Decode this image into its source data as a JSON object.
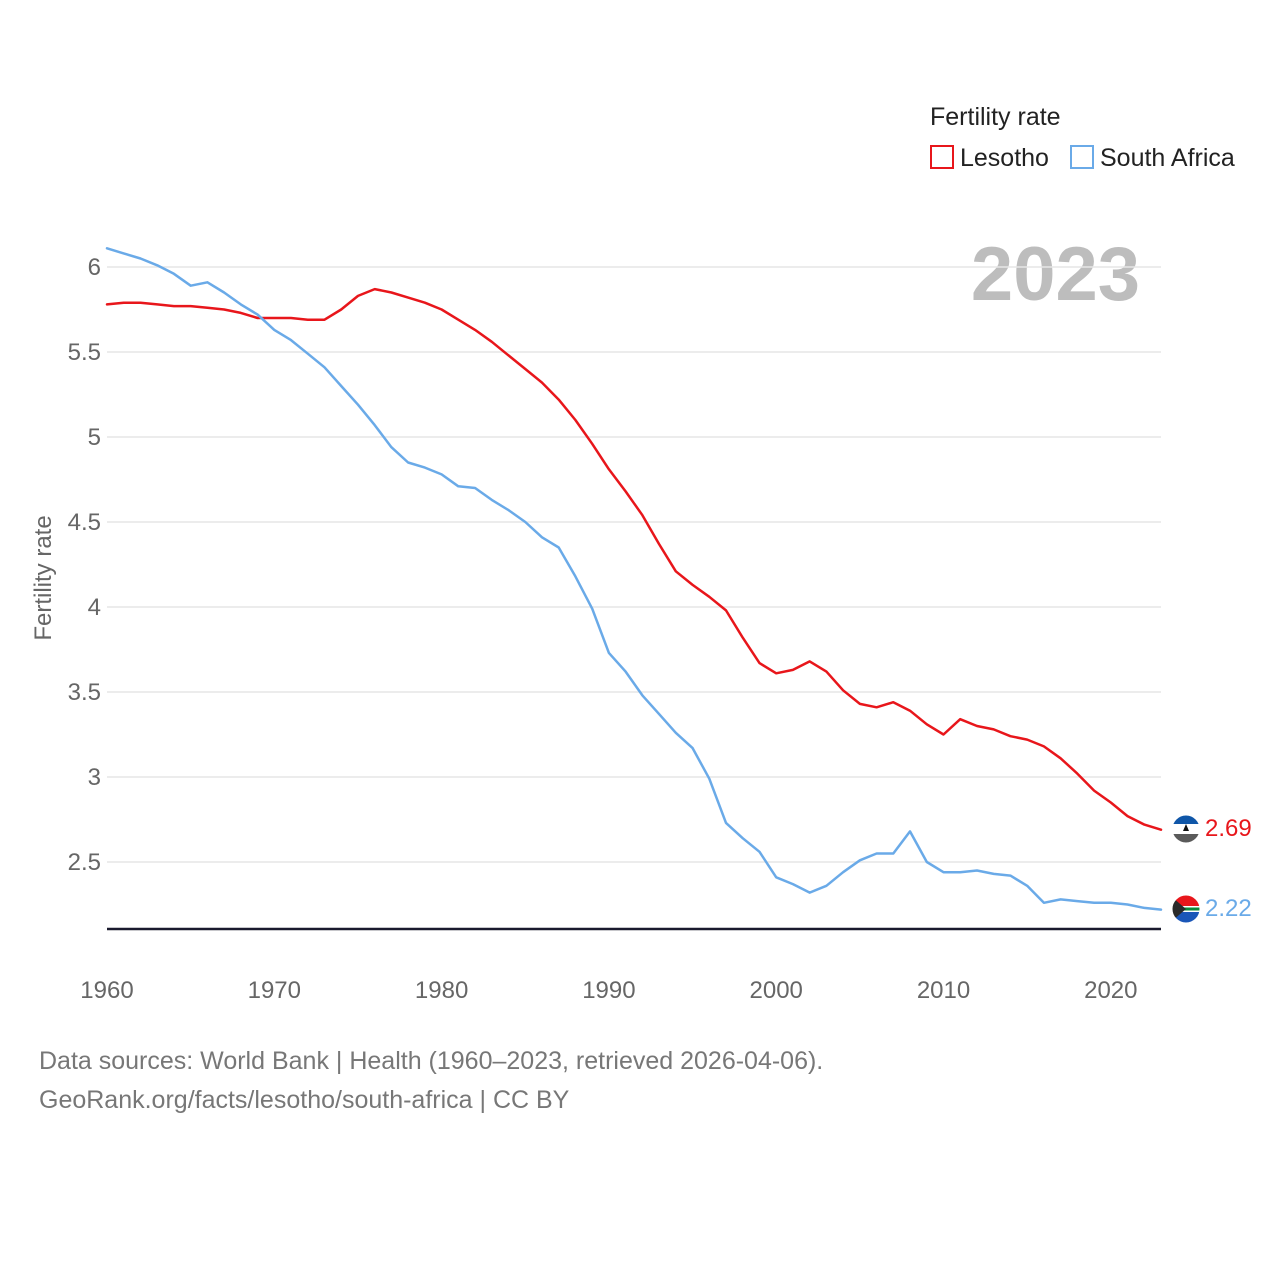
{
  "chart_data": {
    "type": "line",
    "legend_title": "Fertility rate",
    "ylabel": "Fertility rate",
    "xlabel": "",
    "year_display": "2023",
    "xlim": [
      1960,
      2023
    ],
    "ylim": [
      2.1,
      6.1
    ],
    "x_ticks": [
      1960,
      1970,
      1980,
      1990,
      2000,
      2010,
      2020
    ],
    "y_ticks": [
      2.5,
      3,
      3.5,
      4,
      4.5,
      5,
      5.5,
      6
    ],
    "y_tick_labels": [
      "2.5",
      "3",
      "3.5",
      "4",
      "4.5",
      "5",
      "5.5",
      "6"
    ],
    "x_tick_labels": [
      "1960",
      "1970",
      "1980",
      "1990",
      "2000",
      "2010",
      "2020"
    ],
    "x": [
      1960,
      1961,
      1962,
      1963,
      1964,
      1965,
      1966,
      1967,
      1968,
      1969,
      1970,
      1971,
      1972,
      1973,
      1974,
      1975,
      1976,
      1977,
      1978,
      1979,
      1980,
      1981,
      1982,
      1983,
      1984,
      1985,
      1986,
      1987,
      1988,
      1989,
      1990,
      1991,
      1992,
      1993,
      1994,
      1995,
      1996,
      1997,
      1998,
      1999,
      2000,
      2001,
      2002,
      2003,
      2004,
      2005,
      2006,
      2007,
      2008,
      2009,
      2010,
      2011,
      2012,
      2013,
      2014,
      2015,
      2016,
      2017,
      2018,
      2019,
      2020,
      2021,
      2022,
      2023
    ],
    "series": [
      {
        "name": "Lesotho",
        "color": "#e8161b",
        "end_label": "2.69",
        "values": [
          5.78,
          5.79,
          5.79,
          5.78,
          5.77,
          5.77,
          5.76,
          5.75,
          5.73,
          5.7,
          5.7,
          5.7,
          5.69,
          5.69,
          5.75,
          5.83,
          5.87,
          5.85,
          5.82,
          5.79,
          5.75,
          5.69,
          5.63,
          5.56,
          5.48,
          5.4,
          5.32,
          5.22,
          5.1,
          4.96,
          4.81,
          4.68,
          4.54,
          4.37,
          4.21,
          4.13,
          4.06,
          3.98,
          3.82,
          3.67,
          3.61,
          3.63,
          3.68,
          3.62,
          3.51,
          3.43,
          3.41,
          3.44,
          3.39,
          3.31,
          3.25,
          3.34,
          3.3,
          3.28,
          3.24,
          3.22,
          3.18,
          3.11,
          3.02,
          2.92,
          2.85,
          2.77,
          2.72,
          2.69
        ]
      },
      {
        "name": "South Africa",
        "color": "#6aaae8",
        "end_label": "2.22",
        "values": [
          6.11,
          6.08,
          6.05,
          6.01,
          5.96,
          5.89,
          5.91,
          5.85,
          5.78,
          5.72,
          5.63,
          5.57,
          5.49,
          5.41,
          5.3,
          5.19,
          5.07,
          4.94,
          4.85,
          4.82,
          4.78,
          4.71,
          4.7,
          4.63,
          4.57,
          4.5,
          4.41,
          4.35,
          4.18,
          3.99,
          3.73,
          3.62,
          3.48,
          3.37,
          3.26,
          3.17,
          2.99,
          2.73,
          2.64,
          2.56,
          2.41,
          2.37,
          2.32,
          2.36,
          2.44,
          2.51,
          2.55,
          2.55,
          2.68,
          2.5,
          2.44,
          2.44,
          2.45,
          2.43,
          2.42,
          2.36,
          2.26,
          2.28,
          2.27,
          2.26,
          2.26,
          2.25,
          2.23,
          2.22
        ]
      }
    ]
  },
  "footer": {
    "line1": "Data sources: World Bank | Health (1960–2023, retrieved 2026-04-06).",
    "line2": "GeoRank.org/facts/lesotho/south-africa | CC BY"
  },
  "flags": {
    "lesotho": {
      "colors": [
        "#0f56a8",
        "#ffffff",
        "#5a5a5a"
      ]
    },
    "south_africa": {
      "colors": [
        "#e8161b",
        "#1a56b8",
        "#2a2a2a",
        "#ffffff"
      ]
    }
  }
}
